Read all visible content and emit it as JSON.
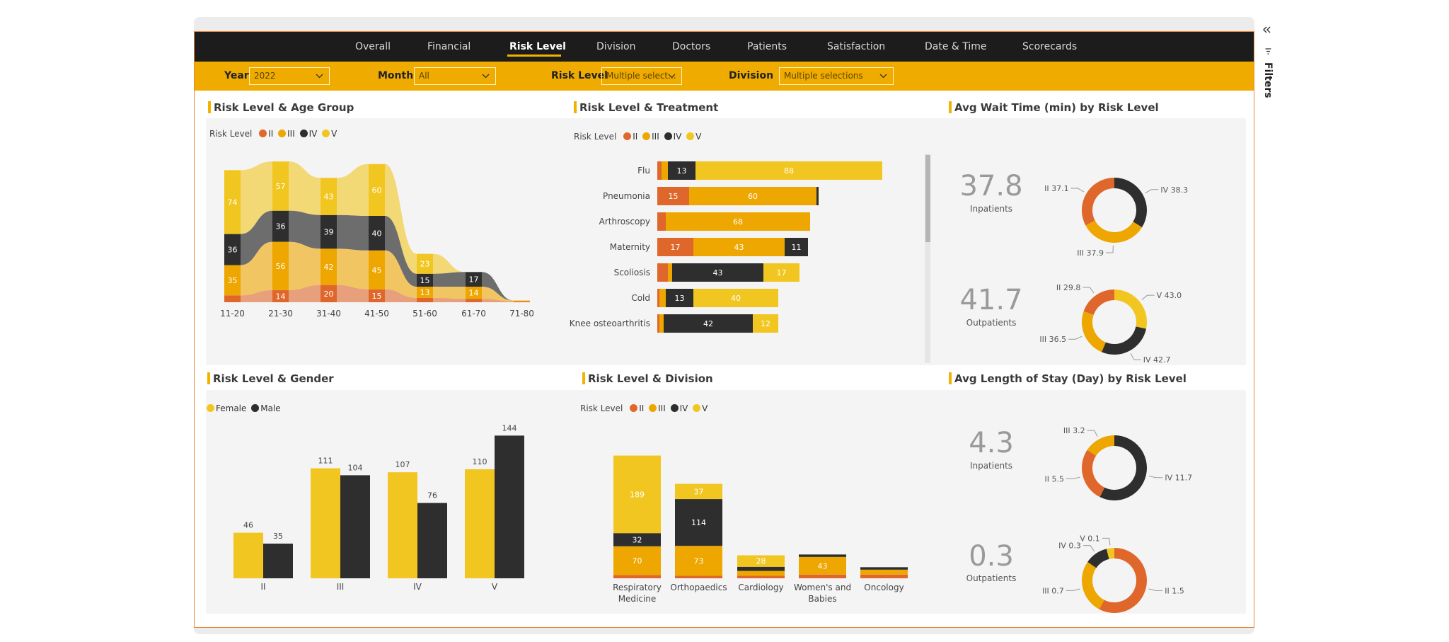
{
  "nav": {
    "items": [
      "Overall",
      "Financial",
      "Risk Level",
      "Division",
      "Doctors",
      "Patients",
      "Satisfaction",
      "Date & Time",
      "Scorecards"
    ],
    "active_index": 2
  },
  "filters": {
    "year": {
      "label": "Year",
      "value": "2022"
    },
    "month": {
      "label": "Month",
      "value": "All"
    },
    "risk": {
      "label": "Risk Level",
      "value": "Multiple select..."
    },
    "division": {
      "label": "Division",
      "value": "Multiple selections"
    }
  },
  "filters_pane": {
    "label": "Filters",
    "collapse_icon": "chevrons-left-icon",
    "filter_icon": "filter-icon"
  },
  "colors": {
    "II": "#e0672b",
    "III": "#eea600",
    "IV": "#2e2e2e",
    "V": "#f2c620",
    "female": "#f2c620",
    "male": "#2e2e2e",
    "track": "#f4f4f4"
  },
  "legend_risk": {
    "title": "Risk Level",
    "items": [
      "II",
      "III",
      "IV",
      "V"
    ]
  },
  "legend_gender": {
    "items": [
      "Female",
      "Male"
    ]
  },
  "cards": {
    "age": {
      "title": "Risk Level & Age Group"
    },
    "treatment": {
      "title": "Risk Level & Treatment"
    },
    "wait": {
      "title": "Avg Wait Time (min) by Risk Level"
    },
    "gender": {
      "title": "Risk Level & Gender"
    },
    "division": {
      "title": "Risk Level & Division"
    },
    "stay": {
      "title": "Avg Length of Stay (Day) by Risk Level"
    }
  },
  "chart_data": [
    {
      "id": "age_ribbon",
      "type": "bar",
      "subtype": "stacked-ribbon",
      "categories": [
        "11-20",
        "21-30",
        "31-40",
        "41-50",
        "51-60",
        "61-70",
        "71-80"
      ],
      "series": [
        {
          "name": "II",
          "values": [
            8,
            14,
            20,
            15,
            5,
            4,
            1
          ]
        },
        {
          "name": "III",
          "values": [
            35,
            56,
            42,
            45,
            13,
            14,
            1
          ]
        },
        {
          "name": "IV",
          "values": [
            36,
            36,
            39,
            40,
            15,
            17,
            0
          ]
        },
        {
          "name": "V",
          "values": [
            74,
            57,
            43,
            60,
            23,
            0,
            0
          ]
        }
      ],
      "labels": [
        [
          "",
          "14",
          "20",
          "15",
          "",
          ""
        ],
        [
          "35",
          "56",
          "42",
          "45",
          "13",
          "14"
        ],
        [
          "36",
          "36",
          "39",
          "40",
          "15",
          "17"
        ],
        [
          "74",
          "57",
          "43",
          "60",
          "23",
          ""
        ]
      ]
    },
    {
      "id": "treatment_bars",
      "type": "bar",
      "orientation": "horizontal",
      "categories": [
        "Flu",
        "Pneumonia",
        "Arthroscopy",
        "Maternity",
        "Scoliosis",
        "Cold",
        "Knee osteoarthritis"
      ],
      "series": [
        {
          "name": "II",
          "values": [
            2,
            15,
            4,
            17,
            5,
            1,
            1
          ]
        },
        {
          "name": "III",
          "values": [
            3,
            60,
            68,
            43,
            2,
            3,
            2
          ]
        },
        {
          "name": "IV",
          "values": [
            13,
            1,
            0,
            11,
            43,
            13,
            42
          ]
        },
        {
          "name": "V",
          "values": [
            88,
            0,
            0,
            0,
            17,
            40,
            12
          ]
        }
      ]
    },
    {
      "id": "wait_inpatients",
      "type": "pie",
      "subtype": "donut",
      "kpi": "37.8",
      "kpi_label": "Inpatients",
      "slices": [
        {
          "name": "IV",
          "value": 38.3,
          "label": "IV 38.3"
        },
        {
          "name": "III",
          "value": 37.9,
          "label": "III 37.9"
        },
        {
          "name": "II",
          "value": 37.1,
          "label": "II 37.1"
        }
      ]
    },
    {
      "id": "wait_outpatients",
      "type": "pie",
      "subtype": "donut",
      "kpi": "41.7",
      "kpi_label": "Outpatients",
      "slices": [
        {
          "name": "V",
          "value": 43.0,
          "label": "V 43.0"
        },
        {
          "name": "IV",
          "value": 42.7,
          "label": "IV 42.7"
        },
        {
          "name": "III",
          "value": 36.5,
          "label": "III 36.5"
        },
        {
          "name": "II",
          "value": 29.8,
          "label": "II 29.8"
        }
      ]
    },
    {
      "id": "gender_bars",
      "type": "bar",
      "categories": [
        "II",
        "III",
        "IV",
        "V"
      ],
      "series": [
        {
          "name": "Female",
          "values": [
            46,
            111,
            107,
            110
          ]
        },
        {
          "name": "Male",
          "values": [
            35,
            104,
            76,
            144
          ]
        }
      ]
    },
    {
      "id": "division_bars",
      "type": "bar",
      "subtype": "stacked",
      "categories": [
        "Respiratory Medicine",
        "Orthopaedics",
        "Cardiology",
        "Women's and Babies",
        "Oncology"
      ],
      "category_lines": [
        [
          "Respiratory",
          "Medicine"
        ],
        [
          "Orthopaedics"
        ],
        [
          "Cardiology"
        ],
        [
          "Women's and",
          "Babies"
        ],
        [
          "Oncology"
        ]
      ],
      "series": [
        {
          "name": "II",
          "values": [
            8,
            6,
            6,
            9,
            9
          ]
        },
        {
          "name": "III",
          "values": [
            70,
            73,
            12,
            43,
            12
          ]
        },
        {
          "name": "IV",
          "values": [
            32,
            114,
            10,
            6,
            6
          ]
        },
        {
          "name": "V",
          "values": [
            189,
            37,
            28,
            0,
            0
          ]
        }
      ]
    },
    {
      "id": "stay_inpatients",
      "type": "pie",
      "subtype": "donut",
      "kpi": "4.3",
      "kpi_label": "Inpatients",
      "slices": [
        {
          "name": "IV",
          "value": 11.7,
          "label": "IV 11.7"
        },
        {
          "name": "II",
          "value": 5.5,
          "label": "II 5.5"
        },
        {
          "name": "III",
          "value": 3.2,
          "label": "III 3.2"
        }
      ]
    },
    {
      "id": "stay_outpatients",
      "type": "pie",
      "subtype": "donut",
      "kpi": "0.3",
      "kpi_label": "Outpatients",
      "slices": [
        {
          "name": "II",
          "value": 1.5,
          "label": "II 1.5"
        },
        {
          "name": "III",
          "value": 0.7,
          "label": "III 0.7"
        },
        {
          "name": "IV",
          "value": 0.3,
          "label": "IV 0.3"
        },
        {
          "name": "V",
          "value": 0.1,
          "label": "V 0.1"
        }
      ]
    }
  ]
}
